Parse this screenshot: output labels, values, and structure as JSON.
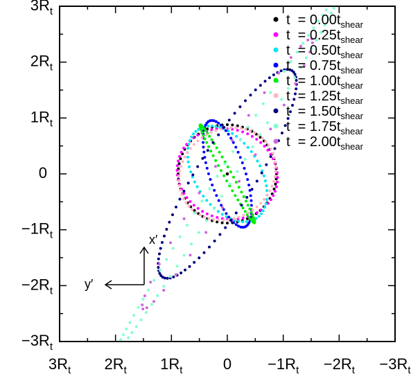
{
  "chart_data": {
    "type": "scatter",
    "title": "",
    "xlabel": "",
    "ylabel": "",
    "x_reversed": true,
    "xlim": [
      3,
      -3
    ],
    "ylim": [
      -3,
      3
    ],
    "unit_symbol": "R",
    "unit_subscript": "t",
    "x_ticks": [
      {
        "value": 3,
        "main": "3R",
        "sub": "t"
      },
      {
        "value": 2,
        "main": "2R",
        "sub": "t"
      },
      {
        "value": 1,
        "main": "1R",
        "sub": "t"
      },
      {
        "value": 0,
        "main": "0",
        "sub": ""
      },
      {
        "value": -1,
        "main": "−1R",
        "sub": "t"
      },
      {
        "value": -2,
        "main": "−2R",
        "sub": "t"
      },
      {
        "value": -3,
        "main": "−3R",
        "sub": "t"
      }
    ],
    "y_ticks": [
      {
        "value": 3,
        "main": "3R",
        "sub": "t"
      },
      {
        "value": 2,
        "main": "2R",
        "sub": "t"
      },
      {
        "value": 1,
        "main": "1R",
        "sub": "t"
      },
      {
        "value": 0,
        "main": "0",
        "sub": ""
      },
      {
        "value": -1,
        "main": "−1R",
        "sub": "t"
      },
      {
        "value": -2,
        "main": "−2R",
        "sub": "t"
      },
      {
        "value": -3,
        "main": "−3R",
        "sub": "t"
      }
    ],
    "center_point": {
      "x": 0,
      "y": 0,
      "color": "#000000"
    },
    "annotation": {
      "x_axis_label": "x′",
      "y_axis_label": "y′"
    },
    "legend": {
      "placement": "top-right",
      "prefix": "t  = ",
      "unit_main": "t",
      "unit_sub": "shear"
    },
    "series": [
      {
        "name": "0.00",
        "color": "#000000",
        "a": 0.88,
        "b": 0.88,
        "angle_deg": 0,
        "n": 60
      },
      {
        "name": "0.25",
        "color": "#ff00ff",
        "a": 0.91,
        "b": 0.8,
        "angle_deg": 20,
        "n": 60
      },
      {
        "name": "0.50",
        "color": "#00e5ee",
        "a": 0.95,
        "b": 0.58,
        "angle_deg": 57,
        "n": 60
      },
      {
        "name": "0.75",
        "color": "#0000ff",
        "a": 1.0,
        "b": 0.32,
        "angle_deg": 72,
        "n": 60
      },
      {
        "name": "1.00",
        "color": "#00ee00",
        "a": 1.0,
        "b": 0.07,
        "angle_deg": 61,
        "n": 60
      },
      {
        "name": "1.25",
        "color": "#ffb6c1",
        "a": 0.9,
        "b": 0.79,
        "angle_deg": 145,
        "n": 60
      },
      {
        "name": "1.50",
        "color": "#000080",
        "a": 2.18,
        "b": 0.52,
        "angle_deg": 122,
        "n": 80
      },
      {
        "name": "1.75",
        "color": "#7fffd4",
        "a": 3.75,
        "b": 0.13,
        "angle_deg": 122,
        "n": 90
      },
      {
        "name": "2.00",
        "color": "#cc66dd",
        "a": 2.85,
        "b": 0.25,
        "angle_deg": 122,
        "n": 32
      }
    ]
  }
}
